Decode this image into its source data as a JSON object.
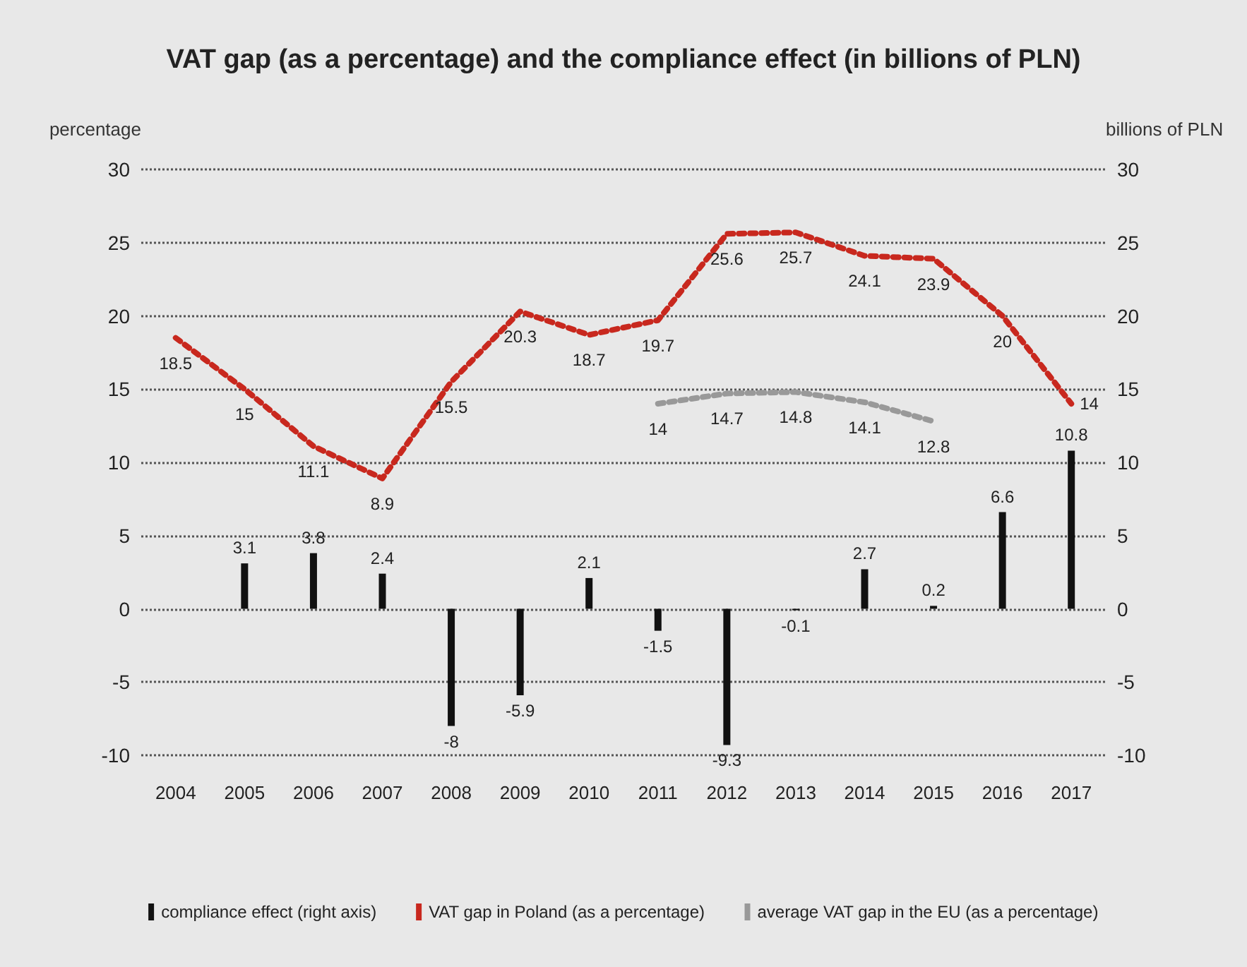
{
  "chart_data": {
    "type": "bar",
    "title": "VAT gap (as a percentage) and the compliance effect (in billions of PLN)",
    "ylabel": "percentage",
    "y2label": "billions of PLN",
    "categories": [
      "2004",
      "2005",
      "2006",
      "2007",
      "2008",
      "2009",
      "2010",
      "2011",
      "2012",
      "2013",
      "2014",
      "2015",
      "2016",
      "2017"
    ],
    "series": [
      {
        "name": "compliance effect (right axis)",
        "axis": "y2",
        "color": "#111111",
        "values": [
          null,
          3.1,
          3.8,
          2.4,
          -8,
          -5.9,
          2.1,
          -1.5,
          -9.3,
          -0.1,
          2.7,
          0.2,
          6.6,
          10.8
        ]
      },
      {
        "name": "VAT gap in Poland (as a percentage)",
        "type": "line",
        "color": "#c8281e",
        "values": [
          18.5,
          15,
          11.1,
          8.9,
          15.5,
          20.3,
          18.7,
          19.7,
          25.6,
          25.7,
          24.1,
          23.9,
          20,
          14
        ]
      },
      {
        "name": "average VAT gap in the EU (as a percentage)",
        "type": "line",
        "color": "#999999",
        "values": [
          null,
          null,
          null,
          null,
          null,
          null,
          null,
          14,
          14.7,
          14.8,
          14.1,
          12.8,
          null,
          null
        ]
      }
    ],
    "ylim": [
      -10,
      30
    ],
    "yticks": [
      -10,
      -5,
      0,
      5,
      10,
      15,
      20,
      25,
      30
    ],
    "y2lim": [
      -10,
      30
    ],
    "y2ticks": [
      -10,
      -5,
      0,
      5,
      10,
      15,
      20,
      25,
      30
    ],
    "grid": "y",
    "legend": "bottom",
    "marker": "none",
    "line_style": "dotted",
    "data_labels": true
  }
}
